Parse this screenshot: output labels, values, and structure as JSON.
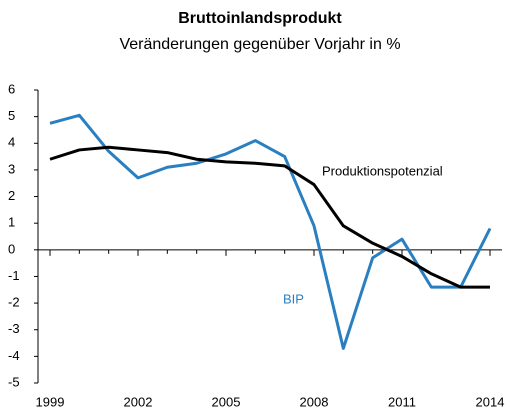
{
  "chart_data": {
    "type": "line",
    "title": "Bruttoinlandsprodukt",
    "subtitle": "Veränderungen gegenüber Vorjahr in %",
    "x": [
      1999,
      2000,
      2001,
      2002,
      2003,
      2004,
      2005,
      2006,
      2007,
      2008,
      2009,
      2010,
      2011,
      2012,
      2013,
      2014
    ],
    "series": [
      {
        "name": "BIP",
        "color": "#2a7fc0",
        "values": [
          4.75,
          5.05,
          3.7,
          2.7,
          3.1,
          3.25,
          3.6,
          4.1,
          3.5,
          0.9,
          -3.7,
          -0.3,
          0.4,
          -1.4,
          -1.4,
          0.8
        ]
      },
      {
        "name": "Produktionspotenzial",
        "color": "#000000",
        "values": [
          3.4,
          3.75,
          3.85,
          3.75,
          3.65,
          3.4,
          3.3,
          3.25,
          3.15,
          2.45,
          0.9,
          0.25,
          -0.25,
          -0.9,
          -1.4,
          -1.4
        ]
      }
    ],
    "xlim": [
      1999,
      2014
    ],
    "xticks": [
      1999,
      2002,
      2005,
      2008,
      2011,
      2014
    ],
    "ylim": [
      -5,
      6
    ],
    "yticks": [
      -5,
      -4,
      -3,
      -2,
      -1,
      0,
      1,
      2,
      3,
      4,
      5,
      6
    ],
    "grid": false
  }
}
